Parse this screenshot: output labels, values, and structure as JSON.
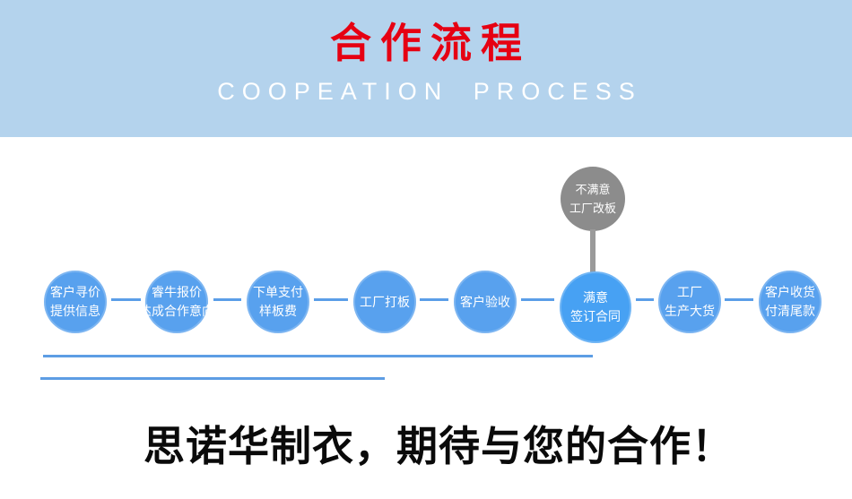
{
  "header": {
    "title": "合作流程",
    "subtitle": "COOPEATION PROCESS"
  },
  "flow": {
    "steps": [
      {
        "lines": [
          "客户寻价",
          "提供信息"
        ]
      },
      {
        "lines": [
          "睿牛报价",
          "达成合作意向"
        ]
      },
      {
        "lines": [
          "下单支付",
          "样板费"
        ]
      },
      {
        "lines": [
          "工厂打板"
        ]
      },
      {
        "lines": [
          "客户验收"
        ]
      },
      {
        "lines": [
          "满意",
          "签订合同"
        ]
      },
      {
        "lines": [
          "工厂",
          "生产大货"
        ]
      },
      {
        "lines": [
          "客户收货",
          "付清尾款"
        ]
      }
    ],
    "alt_node": {
      "lines": [
        "不满意",
        "工厂改板"
      ]
    }
  },
  "footer": {
    "headline": "思诺华制衣，期待与您的合作！"
  },
  "colors": {
    "banner_bg": "#b4d3ed",
    "title_red": "#e60012",
    "subtitle_white": "#ffffff",
    "step_circle_blue": "#58a1ee",
    "highlight_circle_blue": "#47a1f3",
    "alt_circle_gray": "#8c8c8c",
    "connector_blue": "#5b9ee8",
    "underline_blue": "#5d9de4",
    "headline_black": "#0a0a0a"
  }
}
